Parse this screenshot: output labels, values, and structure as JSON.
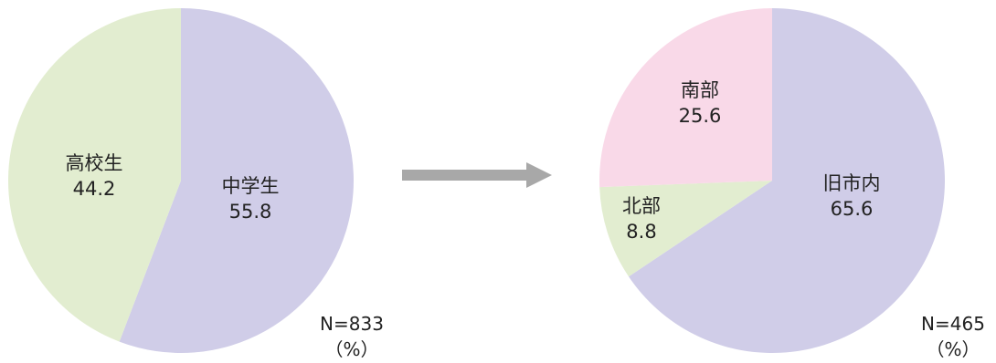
{
  "chart_data": [
    {
      "type": "pie",
      "slices": [
        {
          "label": "中学生",
          "value": 55.8,
          "color": "#d0cde8"
        },
        {
          "label": "高校生",
          "value": 44.2,
          "color": "#e2edd0"
        }
      ],
      "start_angle_deg": 0,
      "direction": "clockwise",
      "n_label": "N=833",
      "unit_label": "（%）"
    },
    {
      "type": "pie",
      "slices": [
        {
          "label": "旧市内",
          "value": 65.6,
          "color": "#d0cde8"
        },
        {
          "label": "北部",
          "value": 8.8,
          "color": "#e2edd0"
        },
        {
          "label": "南部",
          "value": 25.6,
          "color": "#f9d9e8"
        }
      ],
      "start_angle_deg": 0,
      "direction": "clockwise",
      "n_label": "N=465",
      "unit_label": "（%）"
    }
  ],
  "arrow": {
    "color": "#a8a8a8",
    "icon": "arrow-right-icon"
  }
}
